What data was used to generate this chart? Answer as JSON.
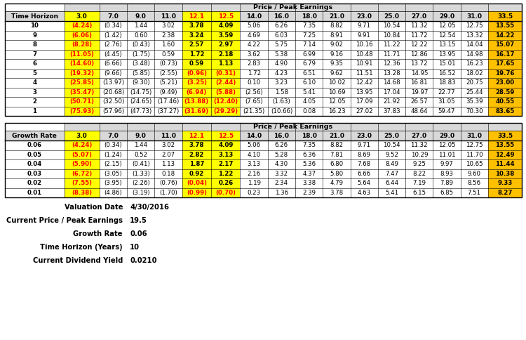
{
  "table1_header_row": [
    "Time Horizon",
    "3.0",
    "7.0",
    "9.0",
    "11.0",
    "12.1",
    "12.5",
    "14.0",
    "16.0",
    "18.0",
    "21.0",
    "23.0",
    "25.0",
    "27.0",
    "29.0",
    "31.0",
    "33.5"
  ],
  "table1_rows": [
    [
      "10",
      "(4.24)",
      "(0.34)",
      "1.44",
      "3.02",
      "3.78",
      "4.09",
      "5.06",
      "6.26",
      "7.35",
      "8.82",
      "9.71",
      "10.54",
      "11.32",
      "12.05",
      "12.75",
      "13.55"
    ],
    [
      "9",
      "(6.06)",
      "(1.42)",
      "0.60",
      "2.38",
      "3.24",
      "3.59",
      "4.69",
      "6.03",
      "7.25",
      "8.91",
      "9.91",
      "10.84",
      "11.72",
      "12.54",
      "13.32",
      "14.22"
    ],
    [
      "8",
      "(8.28)",
      "(2.76)",
      "(0.43)",
      "1.60",
      "2.57",
      "2.97",
      "4.22",
      "5.75",
      "7.14",
      "9.02",
      "10.16",
      "11.22",
      "12.22",
      "13.15",
      "14.04",
      "15.07"
    ],
    [
      "7",
      "(11.05)",
      "(4.45)",
      "(1.75)",
      "0.59",
      "1.72",
      "2.18",
      "3.62",
      "5.38",
      "6.99",
      "9.16",
      "10.48",
      "11.71",
      "12.86",
      "13.95",
      "14.98",
      "16.17"
    ],
    [
      "6",
      "(14.60)",
      "(6.66)",
      "(3.48)",
      "(0.73)",
      "0.59",
      "1.13",
      "2.83",
      "4.90",
      "6.79",
      "9.35",
      "10.91",
      "12.36",
      "13.72",
      "15.01",
      "16.23",
      "17.65"
    ],
    [
      "5",
      "(19.32)",
      "(9.66)",
      "(5.85)",
      "(2.55)",
      "(0.96)",
      "(0.31)",
      "1.72",
      "4.23",
      "6.51",
      "9.62",
      "11.51",
      "13.28",
      "14.95",
      "16.52",
      "18.02",
      "19.76"
    ],
    [
      "4",
      "(25.85)",
      "(13.97)",
      "(9.30)",
      "(5.21)",
      "(3.25)",
      "(2.44)",
      "0.10",
      "3.23",
      "6.10",
      "10.02",
      "12.42",
      "14.68",
      "16.81",
      "18.83",
      "20.75",
      "23.00"
    ],
    [
      "3",
      "(35.47)",
      "(20.68)",
      "(14.75)",
      "(9.49)",
      "(6.94)",
      "(5.88)",
      "(2.56)",
      "1.58",
      "5.41",
      "10.69",
      "13.95",
      "17.04",
      "19.97",
      "22.77",
      "25.44",
      "28.59"
    ],
    [
      "2",
      "(50.71)",
      "(32.50)",
      "(24.65)",
      "(17.46)",
      "(13.88)",
      "(12.40)",
      "(7.65)",
      "(1.63)",
      "4.05",
      "12.05",
      "17.09",
      "21.92",
      "26.57",
      "31.05",
      "35.39",
      "40.55"
    ],
    [
      "1",
      "(75.93)",
      "(57.96)",
      "(47.73)",
      "(37.27)",
      "(31.69)",
      "(29.29)",
      "(21.35)",
      "(10.66)",
      "0.08",
      "16.23",
      "27.02",
      "37.83",
      "48.64",
      "59.47",
      "70.30",
      "83.65"
    ]
  ],
  "table2_header_row": [
    "Growth Rate",
    "3.0",
    "7.0",
    "9.0",
    "11.0",
    "12.1",
    "12.5",
    "14.0",
    "16.0",
    "18.0",
    "21.0",
    "23.0",
    "25.0",
    "27.0",
    "29.0",
    "31.0",
    "33.5"
  ],
  "table2_rows": [
    [
      "0.06",
      "(4.24)",
      "(0.34)",
      "1.44",
      "3.02",
      "3.78",
      "4.09",
      "5.06",
      "6.26",
      "7.35",
      "8.82",
      "9.71",
      "10.54",
      "11.32",
      "12.05",
      "12.75",
      "13.55"
    ],
    [
      "0.05",
      "(5.07)",
      "(1.24)",
      "0.52",
      "2.07",
      "2.82",
      "3.13",
      "4.10",
      "5.28",
      "6.36",
      "7.81",
      "8.69",
      "9.52",
      "10.29",
      "11.01",
      "11.70",
      "12.49"
    ],
    [
      "0.04",
      "(5.90)",
      "(2.15)",
      "(0.41)",
      "1.13",
      "1.87",
      "2.17",
      "3.13",
      "4.30",
      "5.36",
      "6.80",
      "7.68",
      "8.49",
      "9.25",
      "9.97",
      "10.65",
      "11.44"
    ],
    [
      "0.03",
      "(6.72)",
      "(3.05)",
      "(1.33)",
      "0.18",
      "0.92",
      "1.22",
      "2.16",
      "3.32",
      "4.37",
      "5.80",
      "6.66",
      "7.47",
      "8.22",
      "8.93",
      "9.60",
      "10.38"
    ],
    [
      "0.02",
      "(7.55)",
      "(3.95)",
      "(2.26)",
      "(0.76)",
      "(0.04)",
      "0.26",
      "1.19",
      "2.34",
      "3.38",
      "4.79",
      "5.64",
      "6.44",
      "7.19",
      "7.89",
      "8.56",
      "9.33"
    ],
    [
      "0.01",
      "(8.38)",
      "(4.86)",
      "(3.19)",
      "(1.70)",
      "(0.99)",
      "(0.70)",
      "0.23",
      "1.36",
      "2.39",
      "3.78",
      "4.63",
      "5.41",
      "6.15",
      "6.85",
      "7.51",
      "8.27"
    ]
  ],
  "col_header_label": "Price / Peak Earnings",
  "info_labels": [
    "Valuation Date",
    "Current Price / Peak Earnings",
    "Growth Rate",
    "Time Horizon (Years)",
    "Current Dividend Yield"
  ],
  "info_values": [
    "4/30/2016",
    "19.5",
    "0.06",
    "10",
    "0.0210"
  ],
  "bg_color": "#ffffff",
  "gray_bg": "#d9d9d9",
  "yellow_bg": "#ffff00",
  "orange_bg": "#ffc000",
  "red_text": "#ff0000",
  "black_text": "#000000"
}
